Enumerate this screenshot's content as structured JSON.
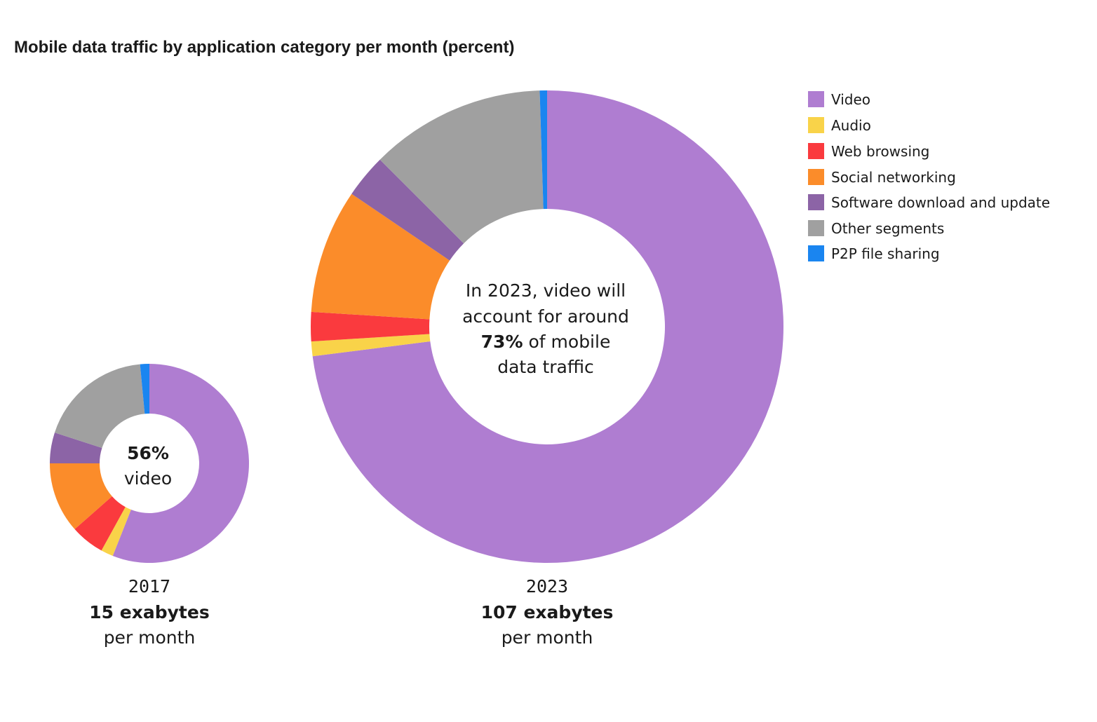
{
  "chart_data": {
    "type": "pie",
    "title": "Mobile data traffic by application category per month (percent)",
    "legend_position": "top-right",
    "categories": [
      "Video",
      "Audio",
      "Web browsing",
      "Social networking",
      "Software download and update",
      "Other segments",
      "P2P file sharing"
    ],
    "colors": [
      "#AF7DD1",
      "#F9D349",
      "#FA3A3E",
      "#FB8C2A",
      "#8C64A6",
      "#A0A0A0",
      "#1A85F0"
    ],
    "series": [
      {
        "name": "2017",
        "total": "15 exabytes",
        "total_note": "per month",
        "center_value": "56%",
        "center_label": "video",
        "values": [
          56,
          2,
          5.5,
          11.5,
          5,
          18.5,
          1.5
        ]
      },
      {
        "name": "2023",
        "total": "107 exabytes",
        "total_note": "per month",
        "center_line_1": "In 2023, video will",
        "center_line_2": "account for around",
        "center_value": "73%",
        "center_value_suffix": "of mobile",
        "center_line_4": "data traffic",
        "values": [
          73,
          1,
          2,
          8.5,
          3,
          12,
          0.5
        ]
      }
    ]
  }
}
